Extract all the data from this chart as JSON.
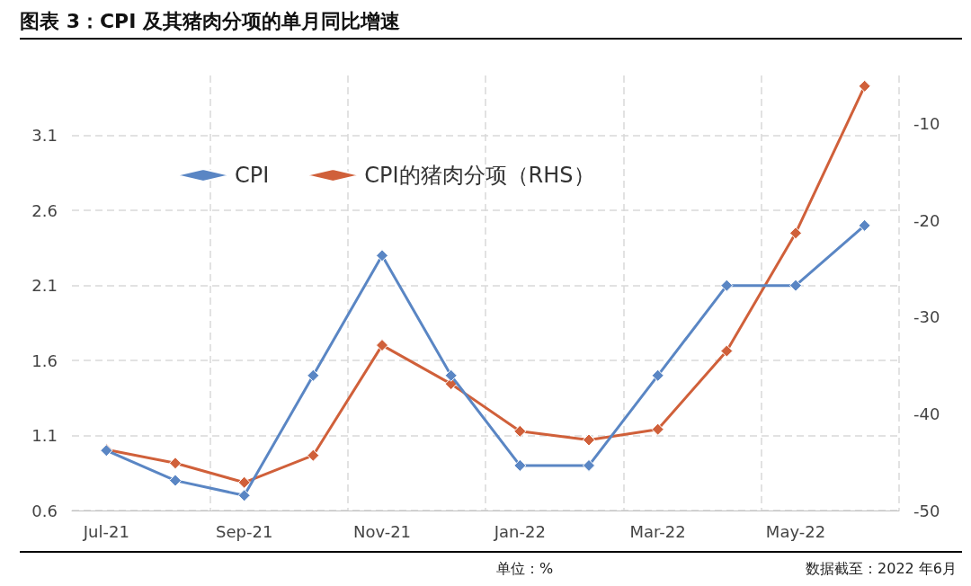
{
  "chart_data": {
    "type": "line",
    "title": "图表 3：CPI 及其猪肉分项的单月同比增速",
    "categories": [
      "Jul-21",
      null,
      "Sep-21",
      null,
      "Nov-21",
      null,
      "Jan-22",
      null,
      "Mar-22",
      null,
      "May-22",
      null
    ],
    "series": [
      {
        "name": "CPI",
        "color": "#5a86c4",
        "values": [
          1.0,
          0.8,
          0.7,
          1.5,
          2.3,
          1.5,
          0.9,
          0.9,
          1.5,
          2.1,
          2.1,
          2.5
        ]
      },
      {
        "name": "CPI的猪肉分项（RHS）",
        "color": "#d0603a",
        "axis": "y2",
        "values": [
          -43.7,
          -45.1,
          -47.1,
          -44.3,
          -32.9,
          -36.9,
          -41.8,
          -42.7,
          -41.6,
          -33.5,
          -21.3,
          -6.1
        ]
      }
    ],
    "ylim": [
      0.6,
      3.5
    ],
    "yticks": [
      0.6,
      1.1,
      1.6,
      2.1,
      2.6,
      3.1
    ],
    "y2lim": [
      -50,
      -5
    ],
    "y2ticks": [
      -50,
      -40,
      -30,
      -20,
      -10
    ],
    "grid": true,
    "legend": "top left",
    "marker": "diamond",
    "line_style": "solid",
    "annotations": [
      "单位：%",
      "数据截至：2022 年6月"
    ]
  }
}
